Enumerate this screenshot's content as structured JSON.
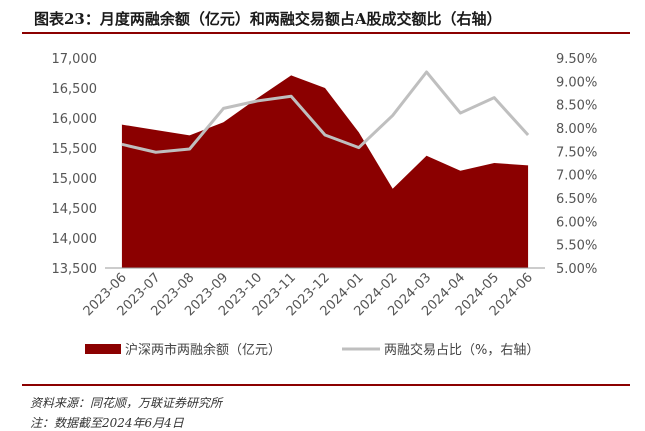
{
  "title": "图表23：月度两融余额（亿元）和两融交易额占A股成交额比（右轴）",
  "source": "资料来源：同花顺，万联证券研究所",
  "note": "注：数据截至2024年6月4日",
  "chart_data": {
    "type": "area",
    "categories": [
      "2023-06",
      "2023-07",
      "2023-08",
      "2023-09",
      "2023-10",
      "2023-11",
      "2023-12",
      "2024-01",
      "2024-02",
      "2024-03",
      "2024-04",
      "2024-05",
      "2024-06"
    ],
    "series": [
      {
        "name": "沪深两市两融余额（亿元）",
        "type": "area",
        "axis": "left",
        "color": "#8b0000",
        "values": [
          15890,
          15800,
          15710,
          15930,
          16330,
          16710,
          16500,
          15760,
          14820,
          15370,
          15120,
          15250,
          15210
        ]
      },
      {
        "name": "两融交易占比（%，右轴）",
        "type": "line",
        "axis": "right",
        "color": "#bfbfbf",
        "values": [
          7.65,
          7.48,
          7.55,
          8.42,
          8.58,
          8.68,
          7.85,
          7.58,
          8.27,
          9.2,
          8.32,
          8.65,
          7.85
        ]
      }
    ],
    "y_left": {
      "min": 13500,
      "max": 17000,
      "step": 500,
      "tick_labels": [
        "13,500",
        "14,000",
        "14,500",
        "15,000",
        "15,500",
        "16,000",
        "16,500",
        "17,000"
      ]
    },
    "y_right": {
      "min": 5.0,
      "max": 9.5,
      "step": 0.5,
      "tick_labels": [
        "5.00%",
        "5.50%",
        "6.00%",
        "6.50%",
        "7.00%",
        "7.50%",
        "8.00%",
        "8.50%",
        "9.00%",
        "9.50%"
      ]
    },
    "legend": {
      "position": "bottom",
      "items": [
        {
          "label": "沪深两市两融余额（亿元）",
          "color": "#8b0000",
          "shape": "rect"
        },
        {
          "label": "两融交易占比（%，右轴）",
          "color": "#bfbfbf",
          "shape": "line"
        }
      ]
    },
    "grid": false
  }
}
